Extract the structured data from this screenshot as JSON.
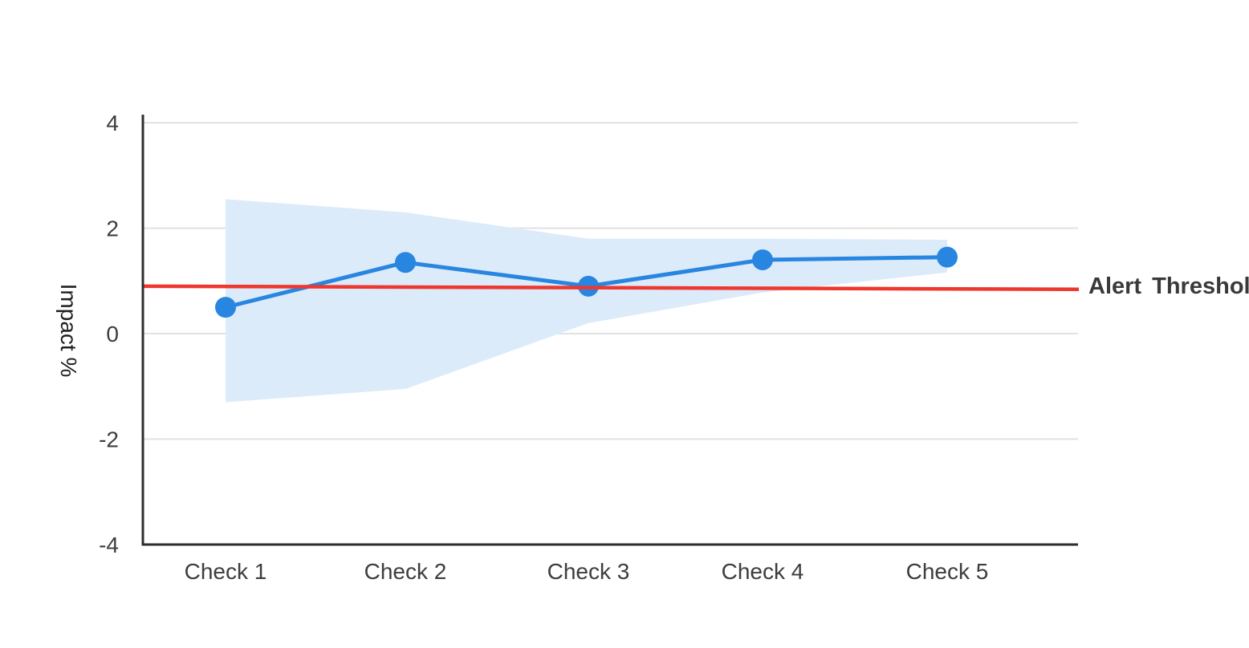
{
  "chart_data": {
    "type": "line",
    "categories": [
      "Check 1",
      "Check 2",
      "Check 3",
      "Check 4",
      "Check 5"
    ],
    "series": [
      {
        "name": "Impact",
        "values": [
          0.5,
          1.35,
          0.9,
          1.4,
          1.45
        ]
      }
    ],
    "confidence_band": {
      "upper": [
        2.55,
        2.3,
        1.8,
        1.8,
        1.78
      ],
      "lower": [
        -1.3,
        -1.05,
        0.2,
        0.78,
        1.16
      ]
    },
    "threshold": {
      "label": "Alert Threshold",
      "start_value": 0.9,
      "end_value": 0.84
    },
    "title": "",
    "xlabel": "",
    "ylabel": "Impact %",
    "yticks": [
      4,
      2,
      0,
      -2,
      -4
    ],
    "ylim": [
      -4,
      4
    ],
    "grid": true,
    "legend_position": "none",
    "colors": {
      "line": "#2886e0",
      "marker": "#2886e0",
      "band": "#dcebfa",
      "threshold": "#ee372e",
      "axis": "#2e2e2e",
      "gridline": "#e2e2e2",
      "tick_text": "#3d3d3d",
      "ylabel_text": "#1f1f1f",
      "threshold_text": "#3a3a3a"
    }
  }
}
